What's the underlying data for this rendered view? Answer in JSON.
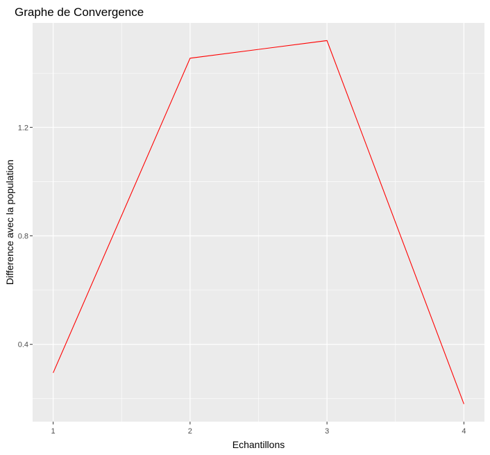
{
  "chart_data": {
    "type": "line",
    "title": "Graphe de Convergence",
    "xlabel": "Echantillons",
    "ylabel": "Difference avec la population",
    "x": [
      1,
      2,
      3,
      4
    ],
    "series": [
      {
        "values": [
          0.295,
          1.455,
          1.52,
          0.18
        ],
        "color": "#ff0000"
      }
    ],
    "xlim": [
      0.85,
      4.15
    ],
    "ylim": [
      0.115,
      1.585
    ],
    "x_ticks": [
      1,
      2,
      3,
      4
    ],
    "x_tick_labels": [
      "1",
      "2",
      "3",
      "4"
    ],
    "y_ticks": [
      0.4,
      0.8,
      1.2
    ],
    "y_tick_labels": [
      "0.4",
      "0.8",
      "1.2"
    ],
    "y_minor_ticks": [
      0.2,
      0.6,
      1.0,
      1.4
    ],
    "x_minor_ticks": [
      1.5,
      2.5,
      3.5
    ],
    "grid": true,
    "panel_color": "#ebebeb",
    "grid_color": "#ffffff",
    "legend": "none"
  }
}
